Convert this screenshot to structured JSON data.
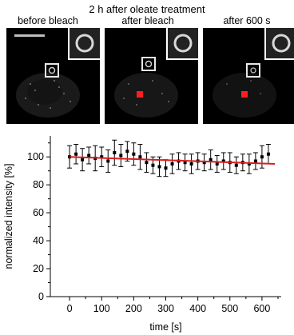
{
  "figure": {
    "title": "2 h after oleate treatment",
    "panels": [
      {
        "label": "before bleach",
        "bleach_spot": false
      },
      {
        "label": "after bleach",
        "bleach_spot": true
      },
      {
        "label": "after 600 s",
        "bleach_spot": true
      }
    ],
    "colors": {
      "fit_line": "#d81e1e",
      "bleach_spot": "#ff1d1d",
      "image_bg": "#000000"
    }
  },
  "chart_data": {
    "type": "scatter",
    "xlabel": "time [s]",
    "ylabel": "normalized intensity [%]",
    "xlim": [
      -60,
      660
    ],
    "ylim": [
      0,
      115
    ],
    "xticks": [
      0,
      100,
      200,
      300,
      400,
      500,
      600
    ],
    "yticks": [
      0,
      20,
      40,
      60,
      80,
      100
    ],
    "series": [
      {
        "values_description": "data points with error bars",
        "x": [
          0,
          20,
          40,
          60,
          80,
          100,
          120,
          140,
          160,
          180,
          200,
          220,
          240,
          260,
          280,
          300,
          320,
          340,
          360,
          380,
          400,
          420,
          440,
          460,
          480,
          500,
          520,
          540,
          560,
          580,
          600,
          620
        ],
        "y": [
          100,
          102,
          98,
          101,
          99,
          100,
          97,
          103,
          101,
          104,
          102,
          100,
          96,
          94,
          93,
          92,
          95,
          97,
          96,
          95,
          97,
          96,
          98,
          95,
          97,
          96,
          94,
          96,
          95,
          97,
          100,
          102
        ],
        "err": [
          8,
          7,
          8,
          6,
          9,
          7,
          8,
          9,
          8,
          7,
          8,
          9,
          7,
          6,
          7,
          6,
          7,
          6,
          6,
          7,
          6,
          6,
          7,
          6,
          6,
          7,
          6,
          6,
          7,
          6,
          8,
          7
        ]
      }
    ],
    "fit": {
      "x": [
        0,
        640
      ],
      "y": [
        100,
        95
      ]
    }
  }
}
